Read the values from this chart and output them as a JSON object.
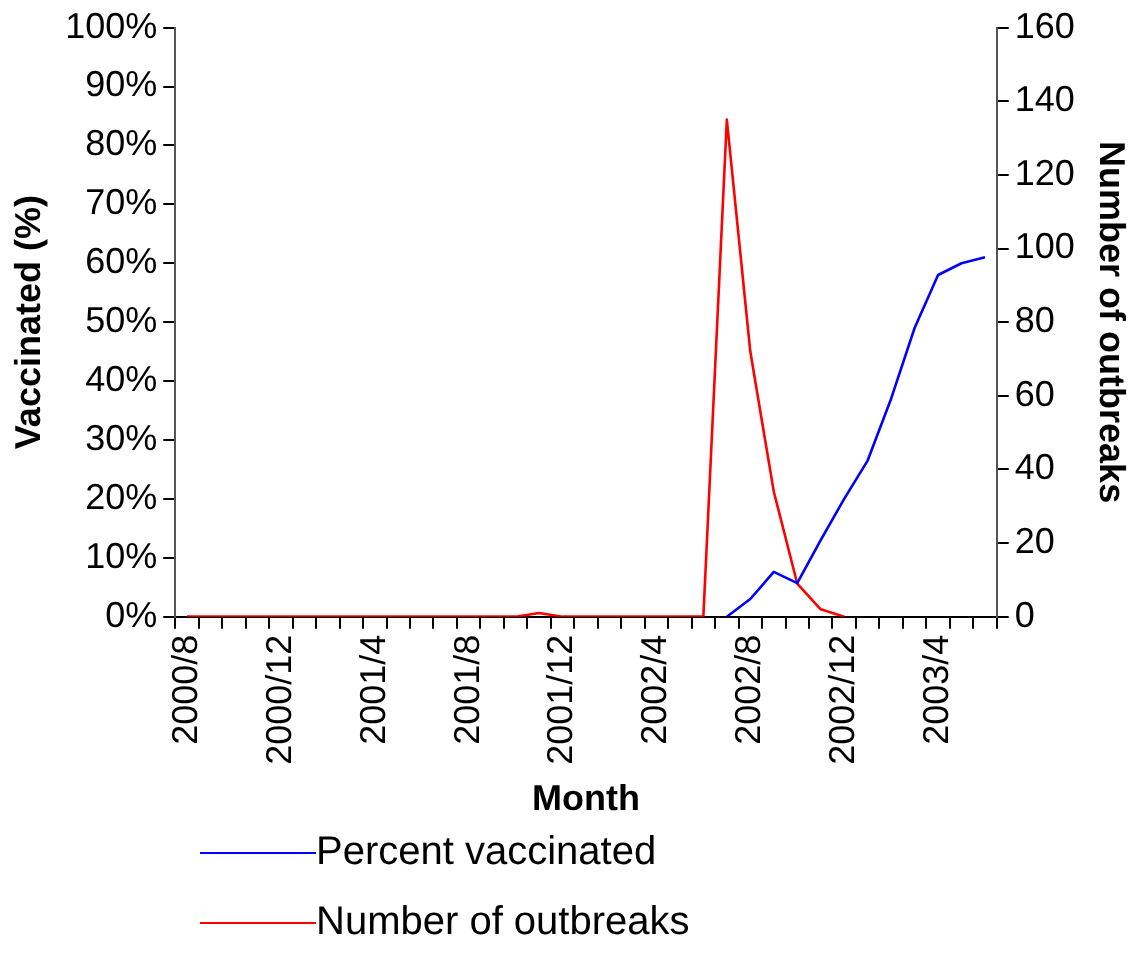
{
  "chart_data": {
    "type": "line",
    "xlabel": "Month",
    "ylabel": "Vaccinated (%)",
    "y2label": "Number of outbreaks",
    "categories": [
      "2000/8",
      null,
      null,
      null,
      "2000/12",
      null,
      null,
      null,
      "2001/4",
      null,
      null,
      null,
      "2001/8",
      null,
      null,
      null,
      "2001/12",
      null,
      null,
      null,
      "2002/4",
      null,
      null,
      null,
      "2002/8",
      null,
      null,
      null,
      "2002/12",
      null,
      null,
      null,
      "2003/4",
      null,
      null
    ],
    "series": [
      {
        "name": "Percent vaccinated",
        "color": "#0000ff",
        "values": [
          null,
          null,
          null,
          null,
          null,
          null,
          null,
          null,
          null,
          null,
          null,
          null,
          null,
          null,
          null,
          null,
          null,
          null,
          null,
          null,
          null,
          null,
          null,
          0,
          3,
          7.6,
          5.7,
          13,
          20,
          26.5,
          37,
          49,
          58,
          60,
          61
        ]
      },
      {
        "name": "Number of outbreaks",
        "color": "#ff0000",
        "axis": "y2",
        "values": [
          0,
          0,
          0,
          0,
          0,
          0,
          0,
          0,
          0,
          0,
          0,
          0,
          0,
          0,
          0,
          1,
          0,
          0,
          0,
          0,
          0,
          0,
          0,
          135,
          72,
          34,
          9,
          2,
          0,
          null,
          null,
          null,
          null,
          null,
          null
        ]
      }
    ],
    "ylim": [
      0,
      100
    ],
    "yticks": [
      {
        "value": 0,
        "label": "0%"
      },
      {
        "value": 10,
        "label": "10%"
      },
      {
        "value": 20,
        "label": "20%"
      },
      {
        "value": 30,
        "label": "30%"
      },
      {
        "value": 40,
        "label": "40%"
      },
      {
        "value": 50,
        "label": "50%"
      },
      {
        "value": 60,
        "label": "60%"
      },
      {
        "value": 70,
        "label": "70%"
      },
      {
        "value": 80,
        "label": "80%"
      },
      {
        "value": 90,
        "label": "90%"
      },
      {
        "value": 100,
        "label": "100%"
      }
    ],
    "y2lim": [
      0,
      160
    ],
    "y2ticks": [
      0,
      20,
      40,
      60,
      80,
      100,
      120,
      140,
      160
    ],
    "legend": "bottom",
    "marker": "none",
    "line_style": "solid",
    "grid": false
  }
}
